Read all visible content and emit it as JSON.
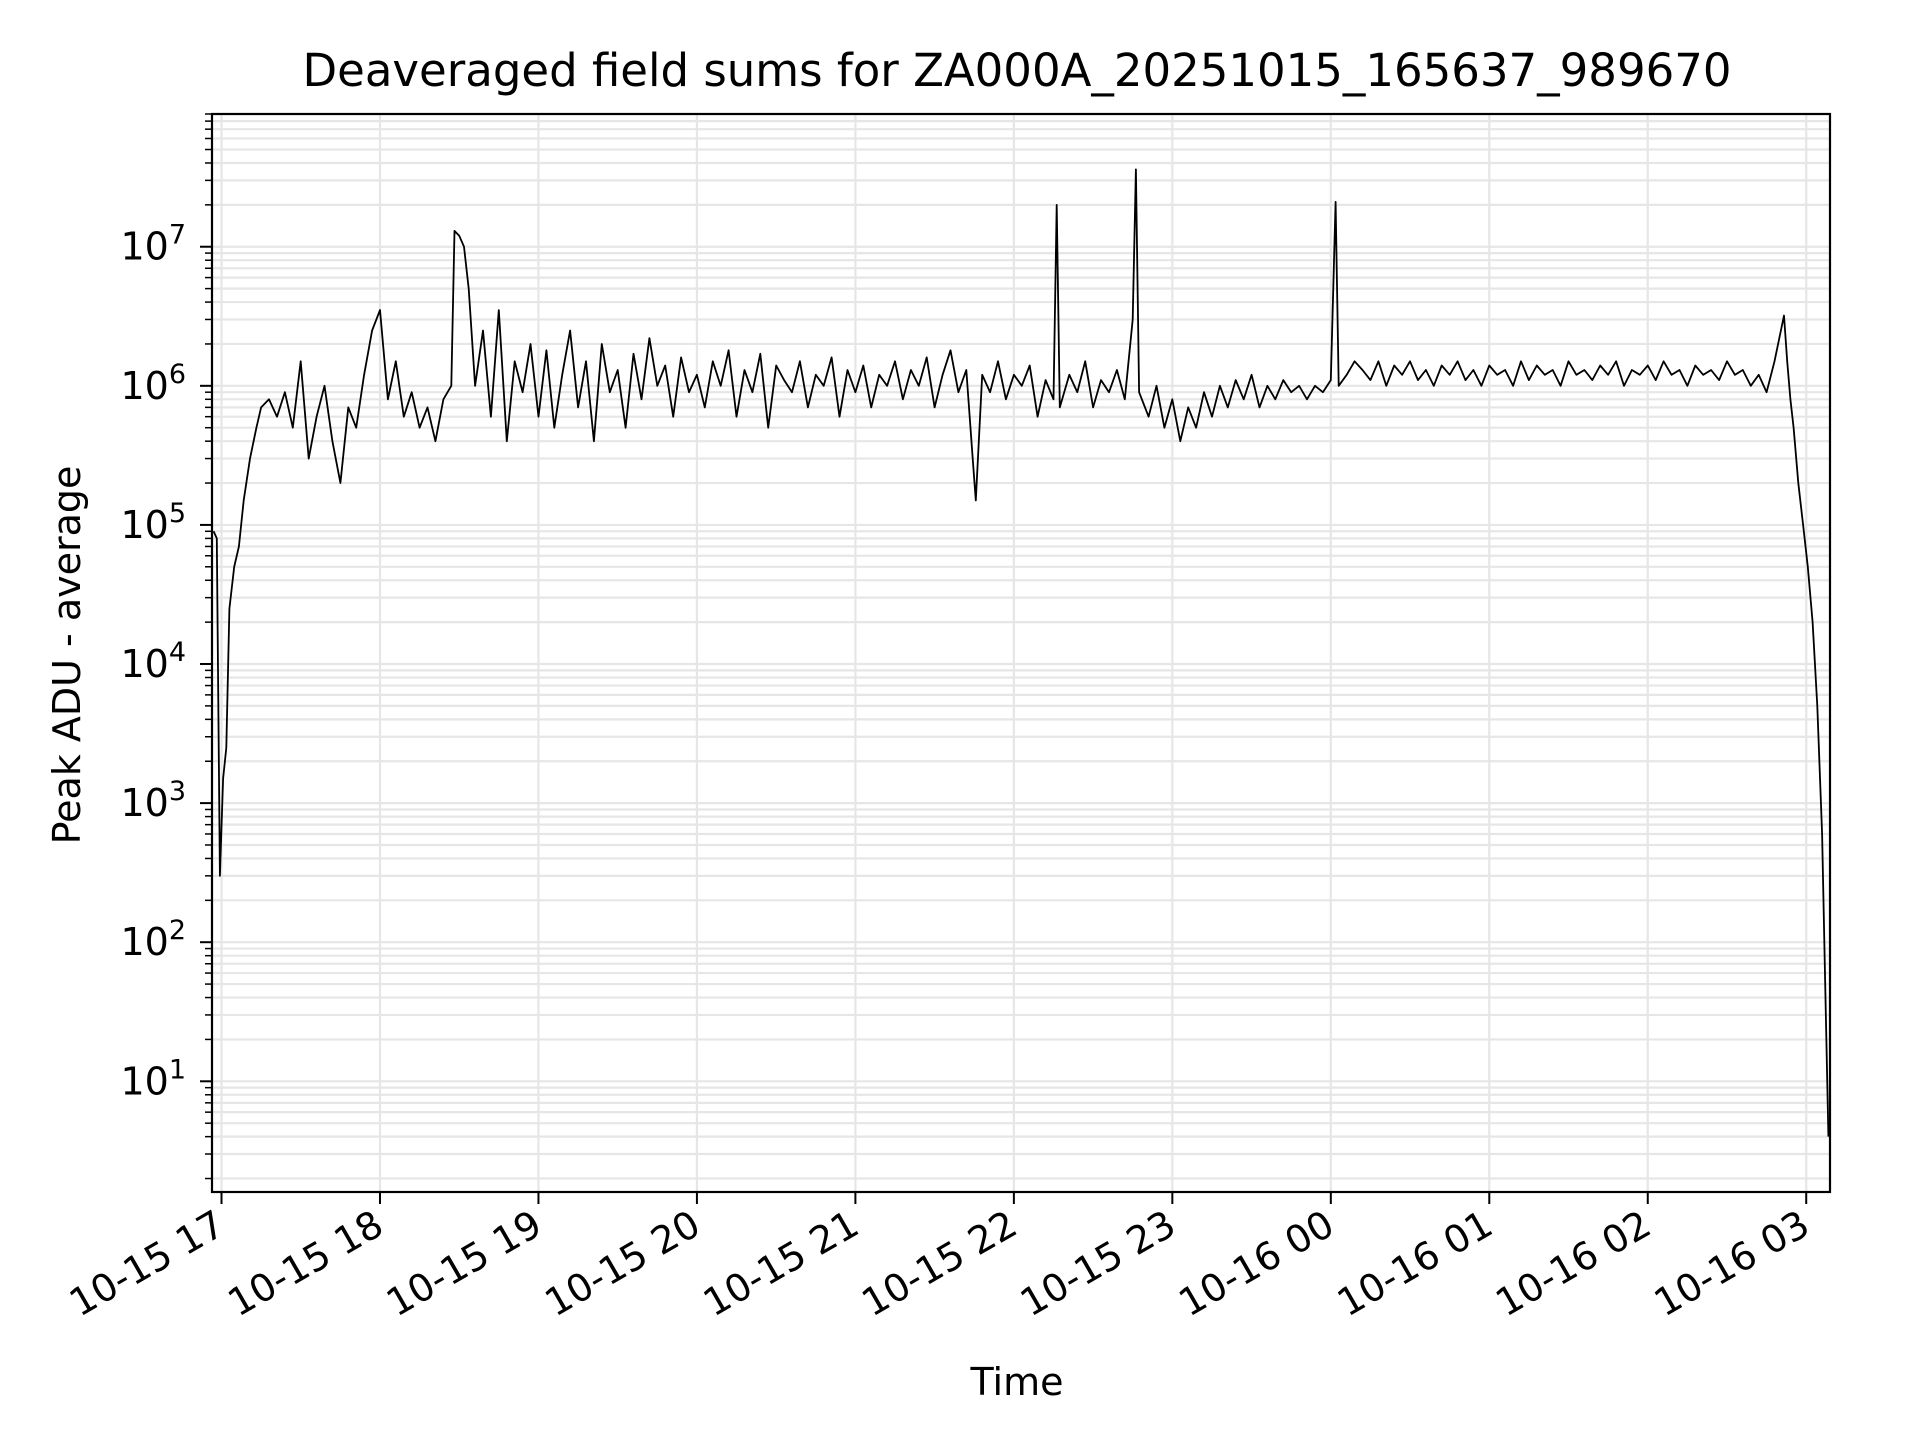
{
  "chart_data": {
    "type": "line",
    "title": "Deaveraged field sums for ZA000A_20251015_165637_989670",
    "xlabel": "Time",
    "ylabel": "Peak ADU - average",
    "yscale": "log",
    "ylim": [
      1.6,
      90000000
    ],
    "xlim_hours": [
      16.94,
      27.15
    ],
    "grid": true,
    "x_tick_labels": [
      "10-15 17",
      "10-15 18",
      "10-15 19",
      "10-15 20",
      "10-15 21",
      "10-15 22",
      "10-15 23",
      "10-16 00",
      "10-16 01",
      "10-16 02",
      "10-16 03"
    ],
    "x_tick_hours": [
      17,
      18,
      19,
      20,
      21,
      22,
      23,
      24,
      25,
      26,
      27
    ],
    "y_tick_exponents": [
      1,
      2,
      3,
      4,
      5,
      6,
      7
    ],
    "series": [
      {
        "name": "Peak ADU - average",
        "color": "#000000",
        "points": [
          [
            16.95,
            90000
          ],
          [
            16.97,
            80000
          ],
          [
            16.99,
            300
          ],
          [
            17.01,
            1500
          ],
          [
            17.03,
            2500
          ],
          [
            17.05,
            25000
          ],
          [
            17.08,
            50000
          ],
          [
            17.11,
            70000
          ],
          [
            17.14,
            150000
          ],
          [
            17.18,
            300000
          ],
          [
            17.22,
            500000
          ],
          [
            17.25,
            700000
          ],
          [
            17.3,
            800000
          ],
          [
            17.35,
            600000
          ],
          [
            17.4,
            900000
          ],
          [
            17.45,
            500000
          ],
          [
            17.5,
            1500000
          ],
          [
            17.55,
            300000
          ],
          [
            17.6,
            600000
          ],
          [
            17.65,
            1000000
          ],
          [
            17.7,
            400000
          ],
          [
            17.75,
            200000
          ],
          [
            17.8,
            700000
          ],
          [
            17.85,
            500000
          ],
          [
            17.9,
            1200000
          ],
          [
            17.95,
            2500000
          ],
          [
            18.0,
            3500000
          ],
          [
            18.05,
            800000
          ],
          [
            18.1,
            1500000
          ],
          [
            18.15,
            600000
          ],
          [
            18.2,
            900000
          ],
          [
            18.25,
            500000
          ],
          [
            18.3,
            700000
          ],
          [
            18.35,
            400000
          ],
          [
            18.4,
            800000
          ],
          [
            18.45,
            1000000
          ],
          [
            18.47,
            13000000
          ],
          [
            18.5,
            12000000
          ],
          [
            18.53,
            10000000
          ],
          [
            18.56,
            5000000
          ],
          [
            18.6,
            1000000
          ],
          [
            18.65,
            2500000
          ],
          [
            18.7,
            600000
          ],
          [
            18.75,
            3500000
          ],
          [
            18.8,
            400000
          ],
          [
            18.85,
            1500000
          ],
          [
            18.9,
            900000
          ],
          [
            18.95,
            2000000
          ],
          [
            19.0,
            600000
          ],
          [
            19.05,
            1800000
          ],
          [
            19.1,
            500000
          ],
          [
            19.15,
            1200000
          ],
          [
            19.2,
            2500000
          ],
          [
            19.25,
            700000
          ],
          [
            19.3,
            1500000
          ],
          [
            19.35,
            400000
          ],
          [
            19.4,
            2000000
          ],
          [
            19.45,
            900000
          ],
          [
            19.5,
            1300000
          ],
          [
            19.55,
            500000
          ],
          [
            19.6,
            1700000
          ],
          [
            19.65,
            800000
          ],
          [
            19.7,
            2200000
          ],
          [
            19.75,
            1000000
          ],
          [
            19.8,
            1400000
          ],
          [
            19.85,
            600000
          ],
          [
            19.9,
            1600000
          ],
          [
            19.95,
            900000
          ],
          [
            20.0,
            1200000
          ],
          [
            20.05,
            700000
          ],
          [
            20.1,
            1500000
          ],
          [
            20.15,
            1000000
          ],
          [
            20.2,
            1800000
          ],
          [
            20.25,
            600000
          ],
          [
            20.3,
            1300000
          ],
          [
            20.35,
            900000
          ],
          [
            20.4,
            1700000
          ],
          [
            20.45,
            500000
          ],
          [
            20.5,
            1400000
          ],
          [
            20.55,
            1100000
          ],
          [
            20.6,
            900000
          ],
          [
            20.65,
            1500000
          ],
          [
            20.7,
            700000
          ],
          [
            20.75,
            1200000
          ],
          [
            20.8,
            1000000
          ],
          [
            20.85,
            1600000
          ],
          [
            20.9,
            600000
          ],
          [
            20.95,
            1300000
          ],
          [
            21.0,
            900000
          ],
          [
            21.05,
            1400000
          ],
          [
            21.1,
            700000
          ],
          [
            21.15,
            1200000
          ],
          [
            21.2,
            1000000
          ],
          [
            21.25,
            1500000
          ],
          [
            21.3,
            800000
          ],
          [
            21.35,
            1300000
          ],
          [
            21.4,
            1000000
          ],
          [
            21.45,
            1600000
          ],
          [
            21.5,
            700000
          ],
          [
            21.55,
            1200000
          ],
          [
            21.6,
            1800000
          ],
          [
            21.65,
            900000
          ],
          [
            21.7,
            1300000
          ],
          [
            21.74,
            300000
          ],
          [
            21.76,
            150000
          ],
          [
            21.8,
            1200000
          ],
          [
            21.85,
            900000
          ],
          [
            21.9,
            1500000
          ],
          [
            21.95,
            800000
          ],
          [
            22.0,
            1200000
          ],
          [
            22.05,
            1000000
          ],
          [
            22.1,
            1400000
          ],
          [
            22.15,
            600000
          ],
          [
            22.2,
            1100000
          ],
          [
            22.25,
            800000
          ],
          [
            22.27,
            20000000
          ],
          [
            22.29,
            700000
          ],
          [
            22.35,
            1200000
          ],
          [
            22.4,
            900000
          ],
          [
            22.45,
            1500000
          ],
          [
            22.5,
            700000
          ],
          [
            22.55,
            1100000
          ],
          [
            22.6,
            900000
          ],
          [
            22.65,
            1300000
          ],
          [
            22.7,
            800000
          ],
          [
            22.75,
            3000000
          ],
          [
            22.77,
            36000000
          ],
          [
            22.79,
            900000
          ],
          [
            22.85,
            600000
          ],
          [
            22.9,
            1000000
          ],
          [
            22.95,
            500000
          ],
          [
            23.0,
            800000
          ],
          [
            23.05,
            400000
          ],
          [
            23.1,
            700000
          ],
          [
            23.15,
            500000
          ],
          [
            23.2,
            900000
          ],
          [
            23.25,
            600000
          ],
          [
            23.3,
            1000000
          ],
          [
            23.35,
            700000
          ],
          [
            23.4,
            1100000
          ],
          [
            23.45,
            800000
          ],
          [
            23.5,
            1200000
          ],
          [
            23.55,
            700000
          ],
          [
            23.6,
            1000000
          ],
          [
            23.65,
            800000
          ],
          [
            23.7,
            1100000
          ],
          [
            23.75,
            900000
          ],
          [
            23.8,
            1000000
          ],
          [
            23.85,
            800000
          ],
          [
            23.9,
            1000000
          ],
          [
            23.95,
            900000
          ],
          [
            24.0,
            1100000
          ],
          [
            24.03,
            21000000
          ],
          [
            24.05,
            1000000
          ],
          [
            24.1,
            1200000
          ],
          [
            24.15,
            1500000
          ],
          [
            24.2,
            1300000
          ],
          [
            24.25,
            1100000
          ],
          [
            24.3,
            1500000
          ],
          [
            24.35,
            1000000
          ],
          [
            24.4,
            1400000
          ],
          [
            24.45,
            1200000
          ],
          [
            24.5,
            1500000
          ],
          [
            24.55,
            1100000
          ],
          [
            24.6,
            1300000
          ],
          [
            24.65,
            1000000
          ],
          [
            24.7,
            1400000
          ],
          [
            24.75,
            1200000
          ],
          [
            24.8,
            1500000
          ],
          [
            24.85,
            1100000
          ],
          [
            24.9,
            1300000
          ],
          [
            24.95,
            1000000
          ],
          [
            25.0,
            1400000
          ],
          [
            25.05,
            1200000
          ],
          [
            25.1,
            1300000
          ],
          [
            25.15,
            1000000
          ],
          [
            25.2,
            1500000
          ],
          [
            25.25,
            1100000
          ],
          [
            25.3,
            1400000
          ],
          [
            25.35,
            1200000
          ],
          [
            25.4,
            1300000
          ],
          [
            25.45,
            1000000
          ],
          [
            25.5,
            1500000
          ],
          [
            25.55,
            1200000
          ],
          [
            25.6,
            1300000
          ],
          [
            25.65,
            1100000
          ],
          [
            25.7,
            1400000
          ],
          [
            25.75,
            1200000
          ],
          [
            25.8,
            1500000
          ],
          [
            25.85,
            1000000
          ],
          [
            25.9,
            1300000
          ],
          [
            25.95,
            1200000
          ],
          [
            26.0,
            1400000
          ],
          [
            26.05,
            1100000
          ],
          [
            26.1,
            1500000
          ],
          [
            26.15,
            1200000
          ],
          [
            26.2,
            1300000
          ],
          [
            26.25,
            1000000
          ],
          [
            26.3,
            1400000
          ],
          [
            26.35,
            1200000
          ],
          [
            26.4,
            1300000
          ],
          [
            26.45,
            1100000
          ],
          [
            26.5,
            1500000
          ],
          [
            26.55,
            1200000
          ],
          [
            26.6,
            1300000
          ],
          [
            26.65,
            1000000
          ],
          [
            26.7,
            1200000
          ],
          [
            26.75,
            900000
          ],
          [
            26.8,
            1500000
          ],
          [
            26.84,
            2500000
          ],
          [
            26.86,
            3200000
          ],
          [
            26.88,
            1500000
          ],
          [
            26.9,
            800000
          ],
          [
            26.92,
            500000
          ],
          [
            26.95,
            200000
          ],
          [
            26.98,
            100000
          ],
          [
            27.01,
            50000
          ],
          [
            27.04,
            20000
          ],
          [
            27.07,
            5000
          ],
          [
            27.1,
            600
          ],
          [
            27.12,
            50
          ],
          [
            27.14,
            4
          ]
        ]
      }
    ]
  }
}
